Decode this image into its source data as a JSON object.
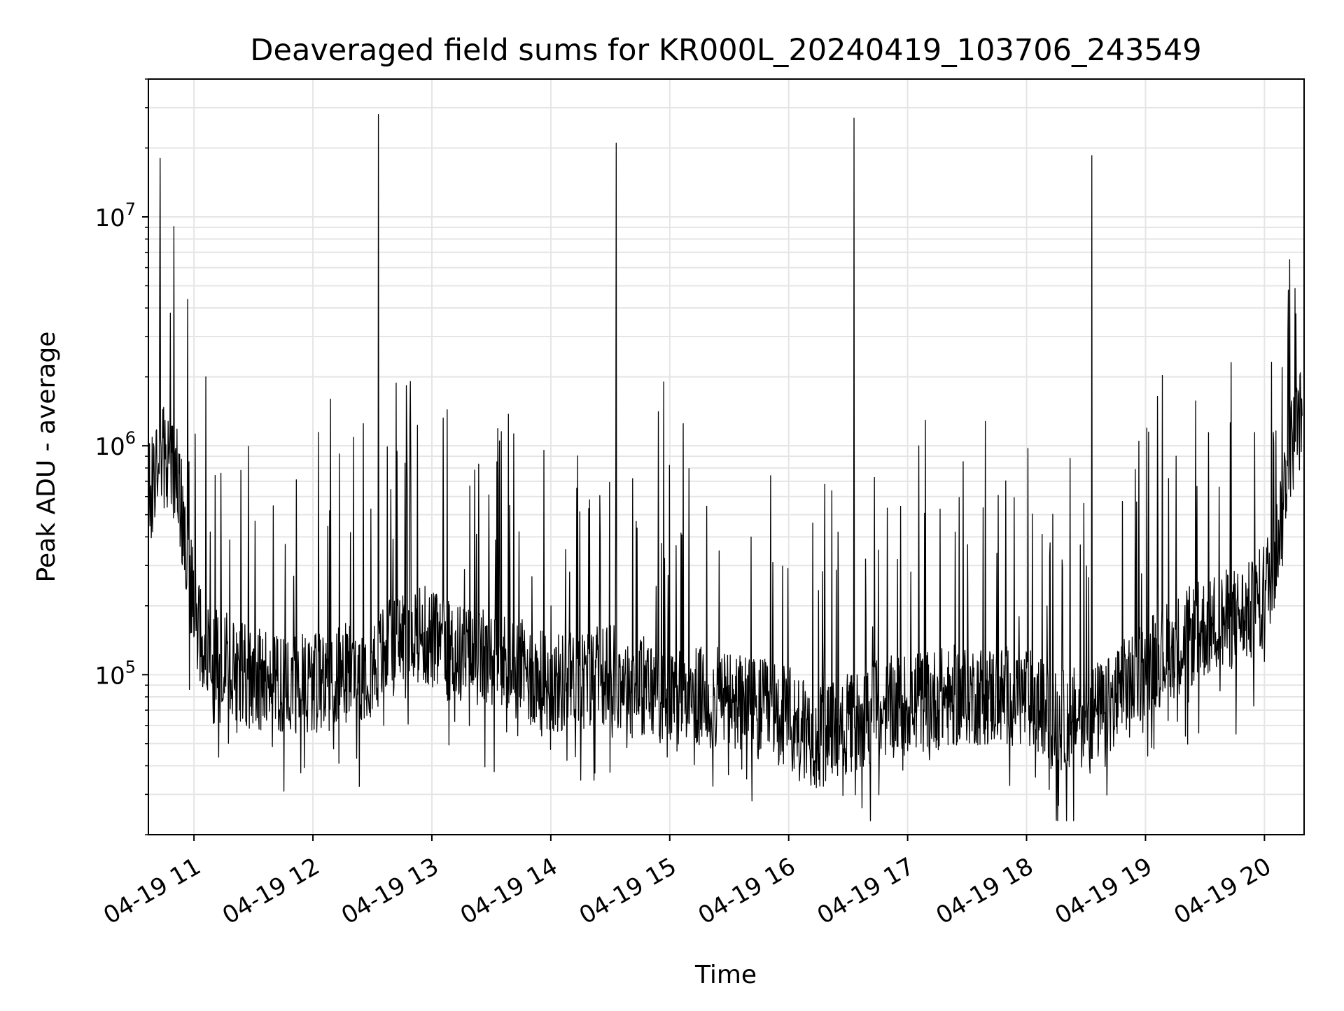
{
  "chart_data": {
    "type": "line",
    "title": "Deaveraged field sums for KR000L_20240419_103706_243549",
    "xlabel": "Time",
    "ylabel": "Peak ADU - average",
    "x_range": [
      "2024-04-19T10:37:06",
      "2024-04-19T20:19:00"
    ],
    "xlim": [
      "2024-04-19T10:37:00",
      "2024-04-19T20:20:00"
    ],
    "y_scale": "log",
    "ylim": [
      20000,
      40000000
    ],
    "grid": true,
    "line_color": "#000000",
    "grid_color": "#e5e5e5",
    "x_ticks": [
      {
        "value": "2024-04-19T11:00",
        "label": "04-19 11"
      },
      {
        "value": "2024-04-19T12:00",
        "label": "04-19 12"
      },
      {
        "value": "2024-04-19T13:00",
        "label": "04-19 13"
      },
      {
        "value": "2024-04-19T14:00",
        "label": "04-19 14"
      },
      {
        "value": "2024-04-19T15:00",
        "label": "04-19 15"
      },
      {
        "value": "2024-04-19T16:00",
        "label": "04-19 16"
      },
      {
        "value": "2024-04-19T17:00",
        "label": "04-19 17"
      },
      {
        "value": "2024-04-19T18:00",
        "label": "04-19 18"
      },
      {
        "value": "2024-04-19T19:00",
        "label": "04-19 19"
      },
      {
        "value": "2024-04-19T20:00",
        "label": "04-19 20"
      }
    ],
    "y_ticks": [
      {
        "value": 100000,
        "base": "10",
        "exp": "5"
      },
      {
        "value": 1000000,
        "base": "10",
        "exp": "6"
      },
      {
        "value": 10000000,
        "base": "10",
        "exp": "7"
      }
    ],
    "baseline": [
      {
        "t": "2024-04-19T10:37",
        "y": 600000
      },
      {
        "t": "2024-04-19T10:45",
        "y": 900000
      },
      {
        "t": "2024-04-19T10:52",
        "y": 700000
      },
      {
        "t": "2024-04-19T10:58",
        "y": 250000
      },
      {
        "t": "2024-04-19T11:05",
        "y": 130000
      },
      {
        "t": "2024-04-19T11:30",
        "y": 95000
      },
      {
        "t": "2024-04-19T12:00",
        "y": 90000
      },
      {
        "t": "2024-04-19T12:30",
        "y": 110000
      },
      {
        "t": "2024-04-19T12:50",
        "y": 160000
      },
      {
        "t": "2024-04-19T13:10",
        "y": 125000
      },
      {
        "t": "2024-04-19T13:40",
        "y": 110000
      },
      {
        "t": "2024-04-19T14:00",
        "y": 90000
      },
      {
        "t": "2024-04-19T14:30",
        "y": 100000
      },
      {
        "t": "2024-04-19T15:00",
        "y": 80000
      },
      {
        "t": "2024-04-19T15:30",
        "y": 78000
      },
      {
        "t": "2024-04-19T16:00",
        "y": 65000
      },
      {
        "t": "2024-04-19T16:15",
        "y": 52000
      },
      {
        "t": "2024-04-19T16:45",
        "y": 70000
      },
      {
        "t": "2024-04-19T17:00",
        "y": 75000
      },
      {
        "t": "2024-04-19T17:30",
        "y": 82000
      },
      {
        "t": "2024-04-19T18:00",
        "y": 80000
      },
      {
        "t": "2024-04-19T18:15",
        "y": 62000
      },
      {
        "t": "2024-04-19T18:40",
        "y": 70000
      },
      {
        "t": "2024-04-19T19:00",
        "y": 110000
      },
      {
        "t": "2024-04-19T19:30",
        "y": 160000
      },
      {
        "t": "2024-04-19T19:55",
        "y": 190000
      },
      {
        "t": "2024-04-19T20:05",
        "y": 300000
      },
      {
        "t": "2024-04-19T20:12",
        "y": 900000
      },
      {
        "t": "2024-04-19T20:19",
        "y": 1400000
      }
    ],
    "peaks": [
      {
        "t": "2024-04-19T10:43",
        "y": 18000000
      },
      {
        "t": "2024-04-19T10:48",
        "y": 3800000
      },
      {
        "t": "2024-04-19T11:06",
        "y": 2000000
      },
      {
        "t": "2024-04-19T12:33",
        "y": 28000000
      },
      {
        "t": "2024-04-19T12:49",
        "y": 1250000
      },
      {
        "t": "2024-04-19T14:33",
        "y": 21000000
      },
      {
        "t": "2024-04-19T14:57",
        "y": 1900000
      },
      {
        "t": "2024-04-19T16:33",
        "y": 27000000
      },
      {
        "t": "2024-04-19T18:33",
        "y": 18500000
      },
      {
        "t": "2024-04-19T20:09",
        "y": 2200000
      }
    ]
  }
}
